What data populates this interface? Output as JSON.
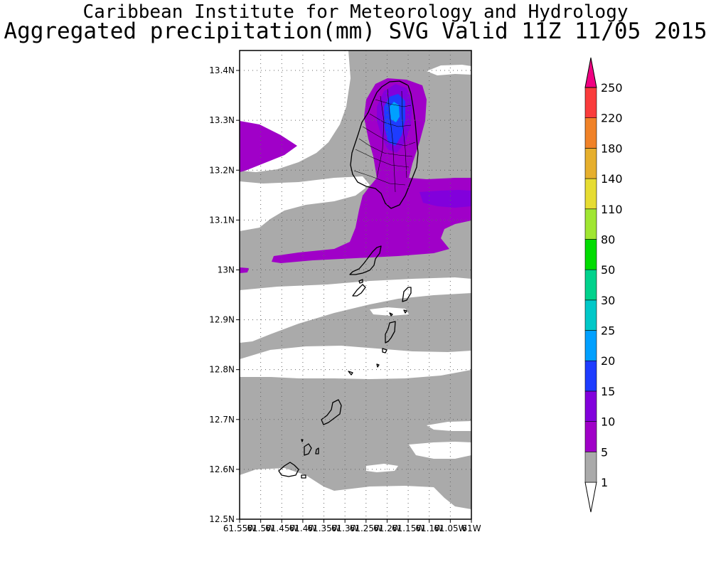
{
  "title_line1": "Caribbean Institute for Meteorology and Hydrology",
  "title_line2": "Aggregated precipitation(mm) SVG Valid 11Z 11/05 2015",
  "map": {
    "lon_range": [
      -61.55,
      -61.0
    ],
    "lat_range": [
      12.5,
      13.44
    ],
    "grid": true,
    "lat_labels": [
      "13.4N",
      "13.3N",
      "13.2N",
      "13.1N",
      "13N",
      "12.9N",
      "12.8N",
      "12.7N",
      "12.6N",
      "12.5N"
    ],
    "lat_values": [
      13.4,
      13.3,
      13.2,
      13.1,
      13.0,
      12.9,
      12.8,
      12.7,
      12.6,
      12.5
    ],
    "lon_labels": [
      "61.55W",
      "61.5W",
      "61.45W",
      "61.4W",
      "61.35W",
      "61.3W",
      "61.25W",
      "61.2W",
      "61.15W",
      "61.1W",
      "61.05W",
      "61W"
    ],
    "lon_values": [
      -61.55,
      -61.5,
      -61.45,
      -61.4,
      -61.35,
      -61.3,
      -61.25,
      -61.2,
      -61.15,
      -61.1,
      -61.05,
      -61.0
    ]
  },
  "colorbar": {
    "levels": [
      "1",
      "5",
      "10",
      "15",
      "20",
      "25",
      "30",
      "50",
      "80",
      "110",
      "140",
      "180",
      "220",
      "250"
    ],
    "colors": [
      "#aaaaaa",
      "#a000c8",
      "#8200dc",
      "#1e3cff",
      "#00a0ff",
      "#00c8c8",
      "#00d28c",
      "#00dc00",
      "#a0e632",
      "#e6dc32",
      "#e6af2d",
      "#f08228",
      "#fa3c3c",
      "#f00082"
    ],
    "under_color": "#ffffff",
    "over_color": "#f00082"
  }
}
